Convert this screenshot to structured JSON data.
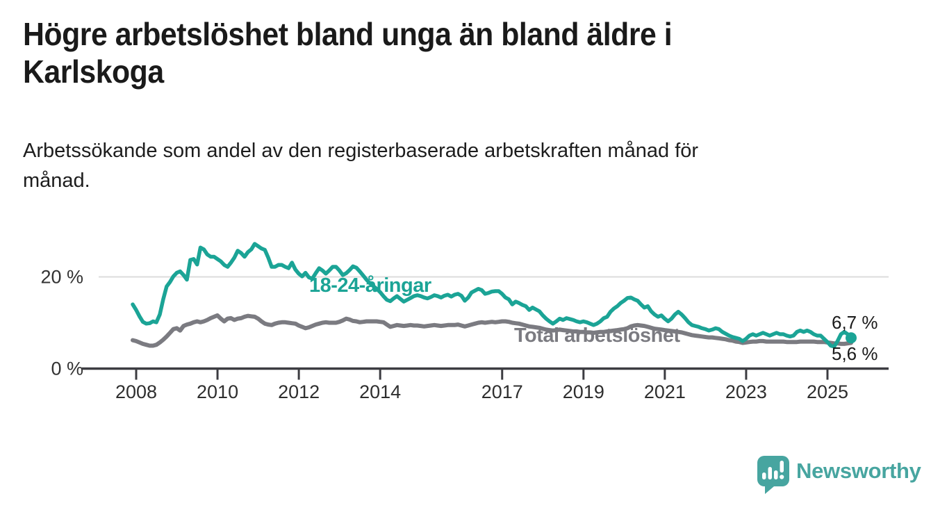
{
  "header": {
    "title": "Högre arbetslöshet bland unga än bland äldre i Karlskoga",
    "title_lines": [
      "Högre arbetslöshet bland unga än bland äldre i",
      "Karlskoga"
    ],
    "subtitle": "Arbetssökande som andel av den registerbaserade arbetskraften månad för månad.",
    "subtitle_lines": [
      "Arbetssökande som andel av den registerbaserade arbetskraften månad för",
      "månad."
    ]
  },
  "chart_data": {
    "type": "line",
    "x_unit": "month",
    "x_start": "2008-01",
    "x_end": "2025-09",
    "ylim": [
      0,
      28
    ],
    "grid": "horizontal",
    "gridlines": [
      20
    ],
    "yticks": [
      {
        "value": 0,
        "label": "0 %"
      },
      {
        "value": 20,
        "label": "20 %"
      }
    ],
    "xticks": [
      2008,
      2010,
      2012,
      2014,
      2017,
      2019,
      2021,
      2023,
      2025
    ],
    "legend_position": "inline-labels",
    "series": [
      {
        "name": "18-24-åringar",
        "color": "#1ba496",
        "end_label": "6,7 %",
        "end_value": 6.7,
        "values": [
          14.0,
          12.8,
          11.4,
          10.2,
          9.8,
          9.9,
          10.3,
          10.1,
          11.8,
          15.1,
          17.9,
          18.9,
          20.1,
          20.9,
          21.2,
          20.4,
          19.4,
          23.7,
          23.9,
          22.7,
          26.4,
          26.0,
          24.9,
          24.4,
          24.4,
          23.9,
          23.4,
          22.6,
          22.2,
          23.1,
          24.2,
          25.7,
          25.2,
          24.4,
          25.4,
          26.0,
          27.2,
          26.7,
          26.2,
          25.9,
          24.2,
          22.2,
          22.2,
          22.6,
          22.6,
          22.2,
          21.9,
          23.1,
          21.6,
          20.7,
          20.1,
          20.9,
          19.9,
          19.6,
          20.8,
          21.9,
          21.4,
          20.7,
          21.4,
          22.2,
          22.2,
          21.4,
          20.4,
          20.8,
          21.5,
          22.3,
          22.0,
          21.2,
          20.3,
          19.4,
          18.6,
          18.0,
          17.4,
          16.7,
          15.8,
          15.0,
          14.7,
          15.3,
          15.8,
          15.2,
          14.6,
          15.0,
          15.4,
          15.8,
          16.0,
          15.8,
          15.5,
          15.3,
          15.6,
          16.0,
          15.8,
          15.5,
          15.9,
          16.1,
          15.7,
          16.1,
          16.3,
          15.9,
          14.8,
          15.5,
          16.6,
          17.0,
          17.4,
          17.1,
          16.3,
          16.5,
          16.8,
          16.9,
          16.9,
          16.3,
          15.5,
          15.1,
          14.0,
          14.6,
          14.3,
          13.9,
          13.6,
          12.8,
          13.3,
          12.9,
          12.5,
          11.6,
          10.9,
          10.3,
          9.8,
          10.3,
          10.9,
          10.6,
          11.0,
          10.8,
          10.6,
          10.3,
          10.1,
          10.3,
          10.1,
          9.8,
          9.5,
          9.8,
          10.3,
          11.0,
          11.3,
          12.4,
          13.1,
          13.6,
          14.3,
          14.8,
          15.4,
          15.5,
          15.1,
          14.8,
          14.0,
          13.3,
          13.6,
          12.5,
          11.8,
          11.3,
          11.6,
          10.9,
          10.3,
          10.9,
          11.8,
          12.4,
          11.8,
          11.0,
          10.1,
          9.5,
          9.3,
          9.1,
          8.8,
          8.6,
          8.3,
          8.5,
          8.8,
          8.6,
          8.0,
          7.6,
          7.2,
          6.9,
          6.7,
          6.5,
          6.0,
          6.5,
          7.2,
          7.5,
          7.2,
          7.5,
          7.8,
          7.5,
          7.2,
          7.5,
          7.8,
          7.5,
          7.5,
          7.2,
          7.0,
          7.2,
          8.0,
          8.3,
          8.0,
          8.3,
          8.0,
          7.5,
          7.2,
          7.2,
          6.5,
          5.8,
          5.0,
          4.8,
          6.0,
          7.5,
          8.0,
          7.5,
          6.7
        ]
      },
      {
        "name": "Total arbetslöshet",
        "color": "#7b7b81",
        "end_label": "5,6 %",
        "end_value": 5.6,
        "values": [
          6.2,
          6.0,
          5.7,
          5.4,
          5.2,
          5.0,
          5.0,
          5.2,
          5.7,
          6.3,
          7.0,
          7.8,
          8.6,
          8.8,
          8.3,
          9.3,
          9.6,
          9.8,
          10.1,
          10.3,
          10.1,
          10.3,
          10.6,
          11.0,
          11.3,
          11.6,
          10.9,
          10.3,
          10.9,
          11.0,
          10.6,
          10.9,
          11.0,
          11.3,
          11.5,
          11.4,
          11.3,
          10.9,
          10.3,
          9.8,
          9.6,
          9.5,
          9.8,
          10.0,
          10.1,
          10.1,
          10.0,
          9.9,
          9.8,
          9.4,
          9.1,
          8.8,
          9.0,
          9.3,
          9.6,
          9.8,
          10.0,
          10.1,
          10.0,
          10.0,
          10.0,
          10.2,
          10.5,
          10.9,
          10.7,
          10.4,
          10.3,
          10.1,
          10.2,
          10.3,
          10.3,
          10.3,
          10.3,
          10.2,
          10.1,
          9.6,
          9.1,
          9.3,
          9.5,
          9.4,
          9.3,
          9.4,
          9.5,
          9.4,
          9.4,
          9.3,
          9.2,
          9.3,
          9.4,
          9.5,
          9.4,
          9.3,
          9.4,
          9.5,
          9.5,
          9.5,
          9.6,
          9.4,
          9.2,
          9.4,
          9.6,
          9.8,
          10.0,
          10.1,
          10.0,
          10.1,
          10.2,
          10.1,
          10.2,
          10.3,
          10.3,
          10.2,
          10.0,
          9.9,
          9.8,
          9.6,
          9.4,
          9.2,
          9.1,
          9.0,
          8.9,
          8.7,
          8.5,
          8.4,
          8.3,
          8.4,
          8.5,
          8.4,
          8.3,
          8.2,
          8.1,
          8.1,
          8.0,
          8.0,
          7.9,
          7.9,
          7.8,
          7.9,
          8.0,
          8.0,
          8.1,
          8.2,
          8.3,
          8.4,
          8.5,
          8.6,
          8.8,
          9.2,
          9.4,
          9.5,
          9.4,
          9.3,
          9.1,
          8.9,
          8.7,
          8.6,
          8.5,
          8.4,
          8.3,
          8.2,
          8.1,
          8.0,
          7.9,
          7.7,
          7.5,
          7.3,
          7.2,
          7.1,
          7.0,
          6.9,
          6.8,
          6.8,
          6.7,
          6.6,
          6.5,
          6.4,
          6.2,
          6.1,
          5.9,
          5.8,
          5.6,
          5.7,
          5.8,
          5.9,
          5.9,
          6.0,
          6.0,
          5.9,
          5.9,
          5.9,
          5.9,
          5.9,
          5.9,
          5.8,
          5.8,
          5.8,
          5.8,
          5.9,
          5.9,
          5.9,
          5.9,
          5.9,
          5.8,
          5.8,
          5.8,
          5.7,
          5.6,
          5.5,
          5.5,
          5.4,
          5.4,
          5.5,
          5.6
        ]
      }
    ]
  },
  "footer": {
    "brand": "Newsworthy"
  }
}
